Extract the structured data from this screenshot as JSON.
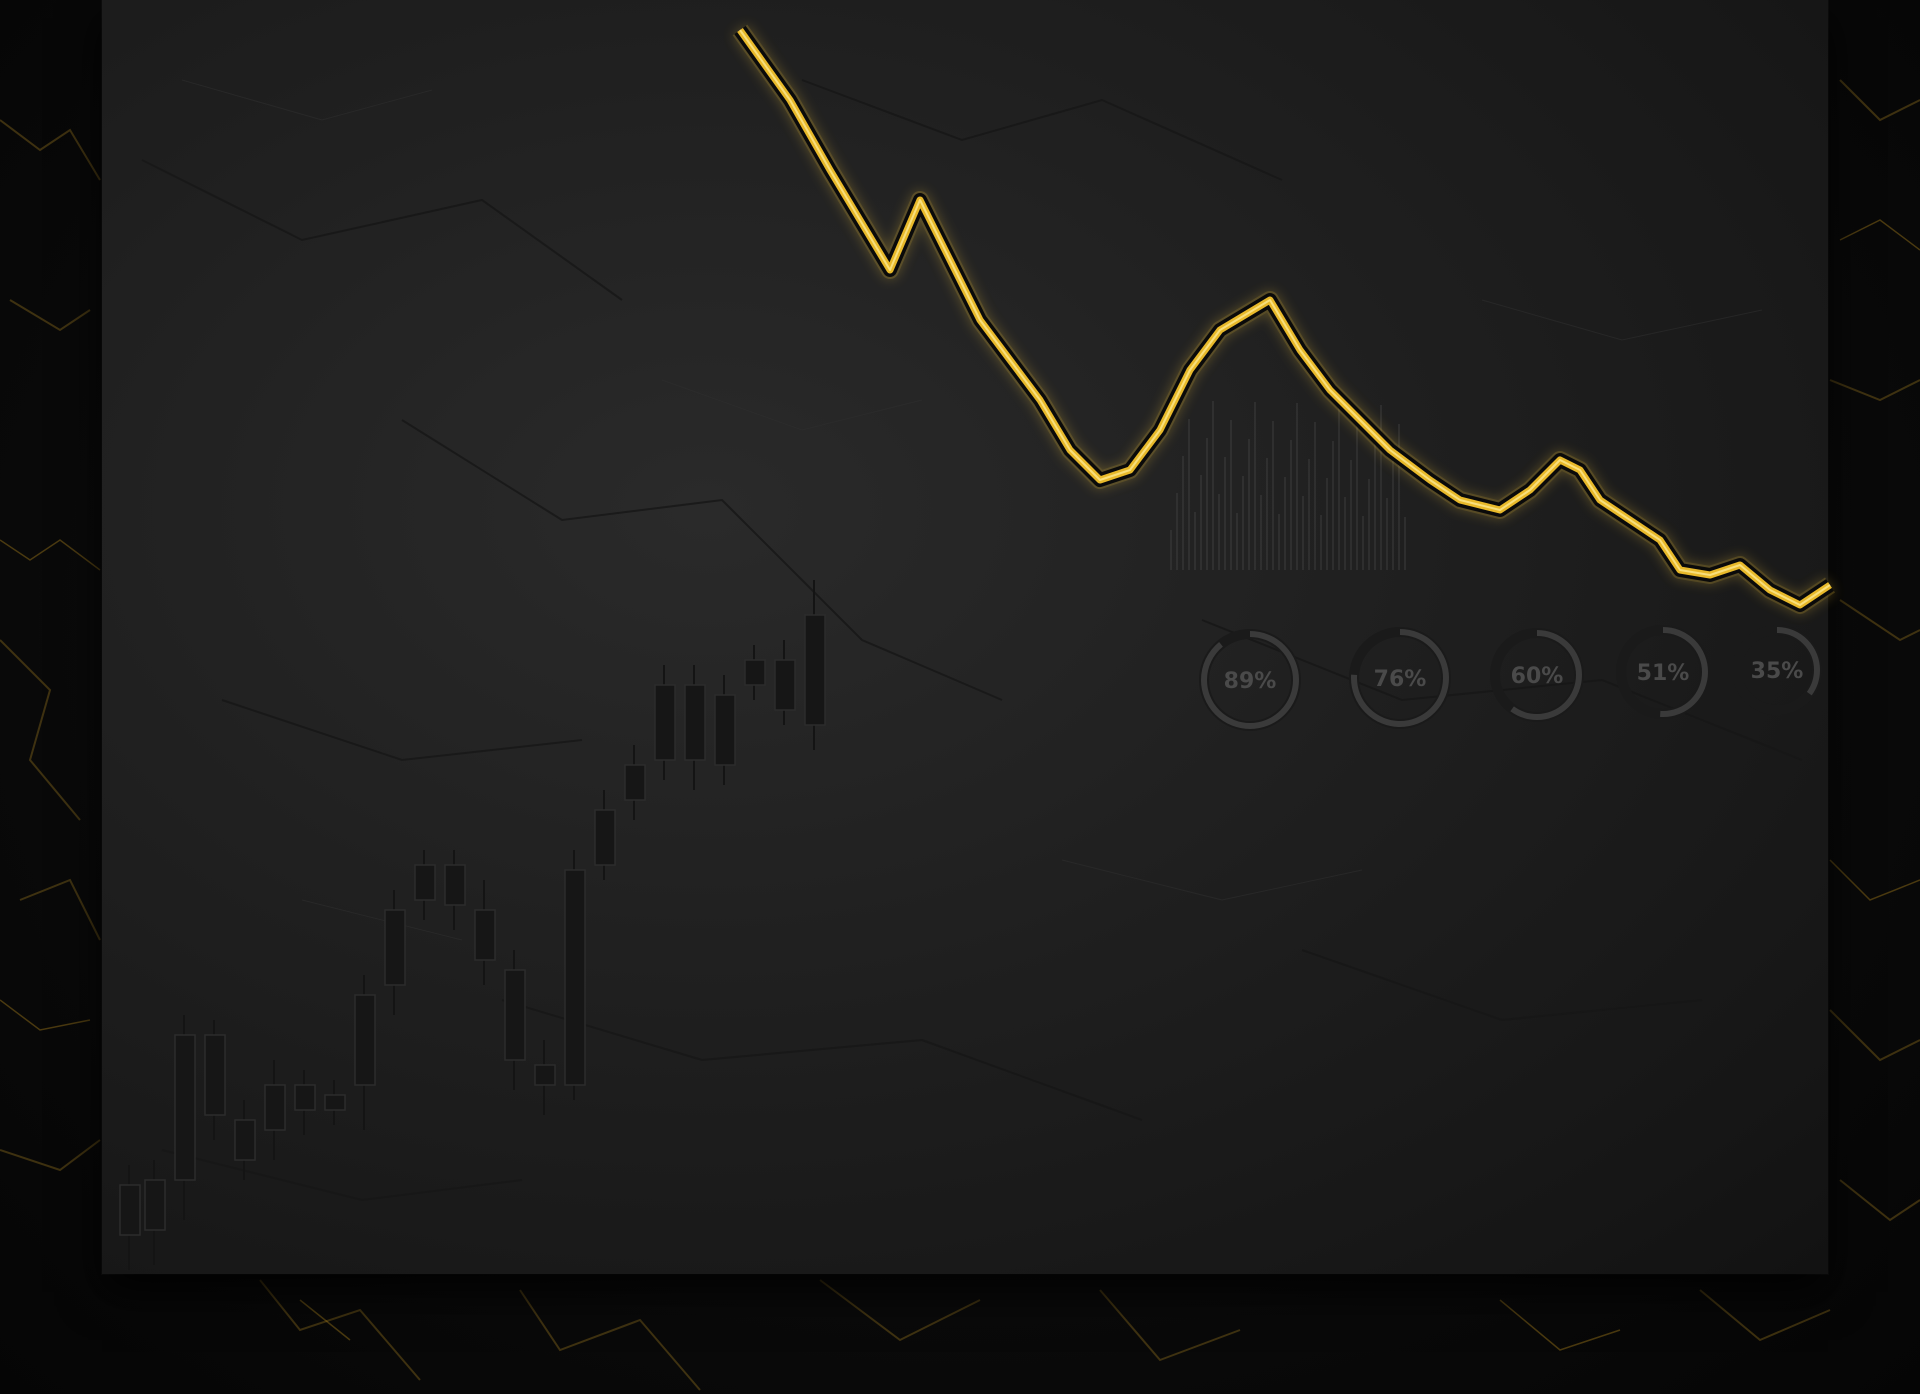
{
  "scene": {
    "description_icon": "stone-slab",
    "colors": {
      "background": "#080808",
      "slab": "#222222",
      "gold": "#e8b92a",
      "gold_glow": "#ffcf3a",
      "engraving": "#141414",
      "gauge_ring": "#3a3a3a"
    }
  },
  "gauges": [
    {
      "label": "89%",
      "value": 89
    },
    {
      "label": "76%",
      "value": 76
    },
    {
      "label": "60%",
      "value": 60
    },
    {
      "label": "51%",
      "value": 51
    },
    {
      "label": "35%",
      "value": 35
    }
  ]
}
